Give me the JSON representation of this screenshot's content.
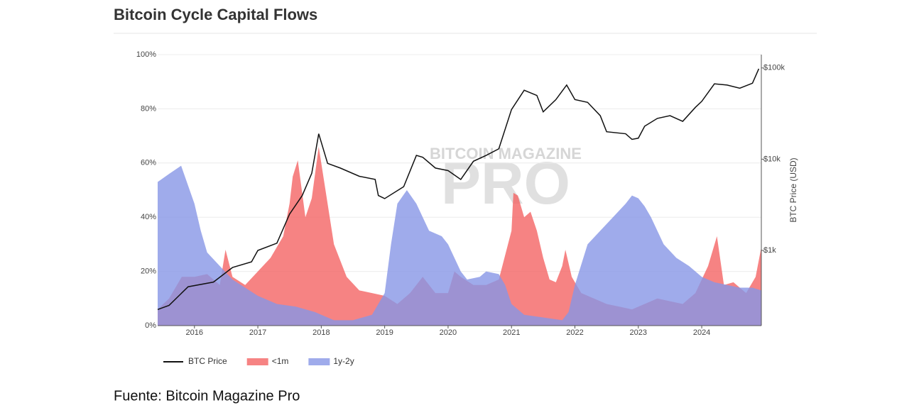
{
  "chart_data": {
    "type": "area-line",
    "title": "Bitcoin Cycle Capital Flows",
    "caption": "Fuente: Bitcoin Magazine Pro",
    "watermark": [
      "BITCOIN MAGAZINE",
      "PRO"
    ],
    "y2_label": "BTC Price (USD)",
    "xlim": [
      2015.42,
      2024.94
    ],
    "xticks": [
      2016,
      2017,
      2018,
      2019,
      2020,
      2021,
      2022,
      2023,
      2024
    ],
    "ylim": [
      0,
      100
    ],
    "yticks": [
      {
        "value": 0,
        "label": "0%"
      },
      {
        "value": 20,
        "label": "20%"
      },
      {
        "value": 40,
        "label": "40%"
      },
      {
        "value": 60,
        "label": "60%"
      },
      {
        "value": 80,
        "label": "80%"
      },
      {
        "value": 100,
        "label": "100%"
      }
    ],
    "y2lim": [
      150,
      140000
    ],
    "y2log": true,
    "y2ticks": [
      {
        "value": 1000,
        "label": "$1k"
      },
      {
        "value": 10000,
        "label": "$10k"
      },
      {
        "value": 100000,
        "label": "$100k"
      }
    ],
    "grid": true,
    "series": [
      {
        "name": "<1m",
        "kind": "area",
        "color": "#f46464",
        "x": [
          2015.42,
          2015.6,
          2015.8,
          2016.0,
          2016.2,
          2016.4,
          2016.49,
          2016.6,
          2016.8,
          2017.0,
          2017.2,
          2017.4,
          2017.5,
          2017.55,
          2017.63,
          2017.75,
          2017.85,
          2017.96,
          2018.1,
          2018.2,
          2018.4,
          2018.6,
          2018.8,
          2019.0,
          2019.2,
          2019.4,
          2019.6,
          2019.8,
          2020.0,
          2020.1,
          2020.2,
          2020.4,
          2020.6,
          2020.8,
          2021.0,
          2021.03,
          2021.1,
          2021.2,
          2021.3,
          2021.4,
          2021.5,
          2021.6,
          2021.7,
          2021.8,
          2021.85,
          2021.95,
          2022.1,
          2022.3,
          2022.5,
          2022.7,
          2022.9,
          2023.1,
          2023.3,
          2023.5,
          2023.7,
          2023.9,
          2024.1,
          2024.24,
          2024.35,
          2024.5,
          2024.7,
          2024.85,
          2024.94
        ],
        "values": [
          6,
          10,
          18,
          18,
          19,
          15,
          28,
          18,
          15,
          20,
          25,
          33,
          45,
          55,
          61,
          40,
          47,
          66,
          45,
          30,
          18,
          13,
          12,
          11,
          8,
          12,
          18,
          12,
          12,
          20,
          18,
          15,
          15,
          17,
          35,
          49,
          48,
          40,
          42,
          35,
          25,
          17,
          16,
          22,
          28,
          18,
          12,
          10,
          8,
          7,
          6,
          8,
          10,
          9,
          8,
          12,
          22,
          33,
          15,
          16,
          12,
          18,
          29
        ]
      },
      {
        "name": "1y-2y",
        "kind": "area",
        "color": "#8796e6",
        "x": [
          2015.42,
          2015.6,
          2015.79,
          2016.0,
          2016.1,
          2016.2,
          2016.4,
          2016.6,
          2016.8,
          2017.0,
          2017.3,
          2017.6,
          2017.9,
          2018.2,
          2018.5,
          2018.8,
          2019.0,
          2019.1,
          2019.2,
          2019.35,
          2019.5,
          2019.7,
          2019.9,
          2020.0,
          2020.1,
          2020.2,
          2020.3,
          2020.5,
          2020.6,
          2020.8,
          2020.9,
          2021.0,
          2021.2,
          2021.5,
          2021.8,
          2021.9,
          2022.0,
          2022.2,
          2022.4,
          2022.6,
          2022.8,
          2022.9,
          2023.0,
          2023.1,
          2023.2,
          2023.4,
          2023.6,
          2023.8,
          2024.0,
          2024.2,
          2024.4,
          2024.6,
          2024.8,
          2024.94
        ],
        "values": [
          53,
          56,
          59,
          45,
          35,
          27,
          22,
          17,
          14,
          11,
          8,
          7,
          5,
          2,
          2,
          4,
          12,
          30,
          45,
          50,
          45,
          35,
          33,
          30,
          25,
          20,
          17,
          18,
          20,
          19,
          15,
          8,
          4,
          3,
          2,
          5,
          15,
          30,
          35,
          40,
          45,
          48,
          47,
          44,
          40,
          30,
          25,
          22,
          18,
          16,
          15,
          14,
          14,
          13
        ]
      },
      {
        "name": "BTC Price",
        "kind": "line",
        "axis": "y2",
        "color": "#111111",
        "x": [
          2015.42,
          2015.6,
          2015.9,
          2016.3,
          2016.6,
          2016.9,
          2017.0,
          2017.3,
          2017.5,
          2017.7,
          2017.85,
          2017.96,
          2018.1,
          2018.3,
          2018.6,
          2018.85,
          2018.9,
          2019.0,
          2019.3,
          2019.5,
          2019.6,
          2019.8,
          2020.0,
          2020.2,
          2020.4,
          2020.6,
          2020.8,
          2021.0,
          2021.2,
          2021.4,
          2021.5,
          2021.7,
          2021.87,
          2022.0,
          2022.2,
          2022.4,
          2022.5,
          2022.8,
          2022.9,
          2023.0,
          2023.1,
          2023.3,
          2023.5,
          2023.7,
          2023.9,
          2024.0,
          2024.2,
          2024.4,
          2024.6,
          2024.8,
          2024.9
        ],
        "values": [
          225,
          250,
          400,
          450,
          650,
          750,
          1000,
          1200,
          2500,
          4000,
          7000,
          19000,
          9000,
          8000,
          6500,
          6000,
          4000,
          3700,
          5000,
          11000,
          10500,
          8000,
          7500,
          6000,
          9500,
          11000,
          13000,
          35000,
          57000,
          50000,
          33000,
          45000,
          65000,
          45000,
          42000,
          30000,
          20000,
          19000,
          16500,
          17000,
          23000,
          28000,
          30000,
          26000,
          37000,
          43000,
          67000,
          65000,
          60000,
          68000,
          98000
        ]
      }
    ]
  }
}
